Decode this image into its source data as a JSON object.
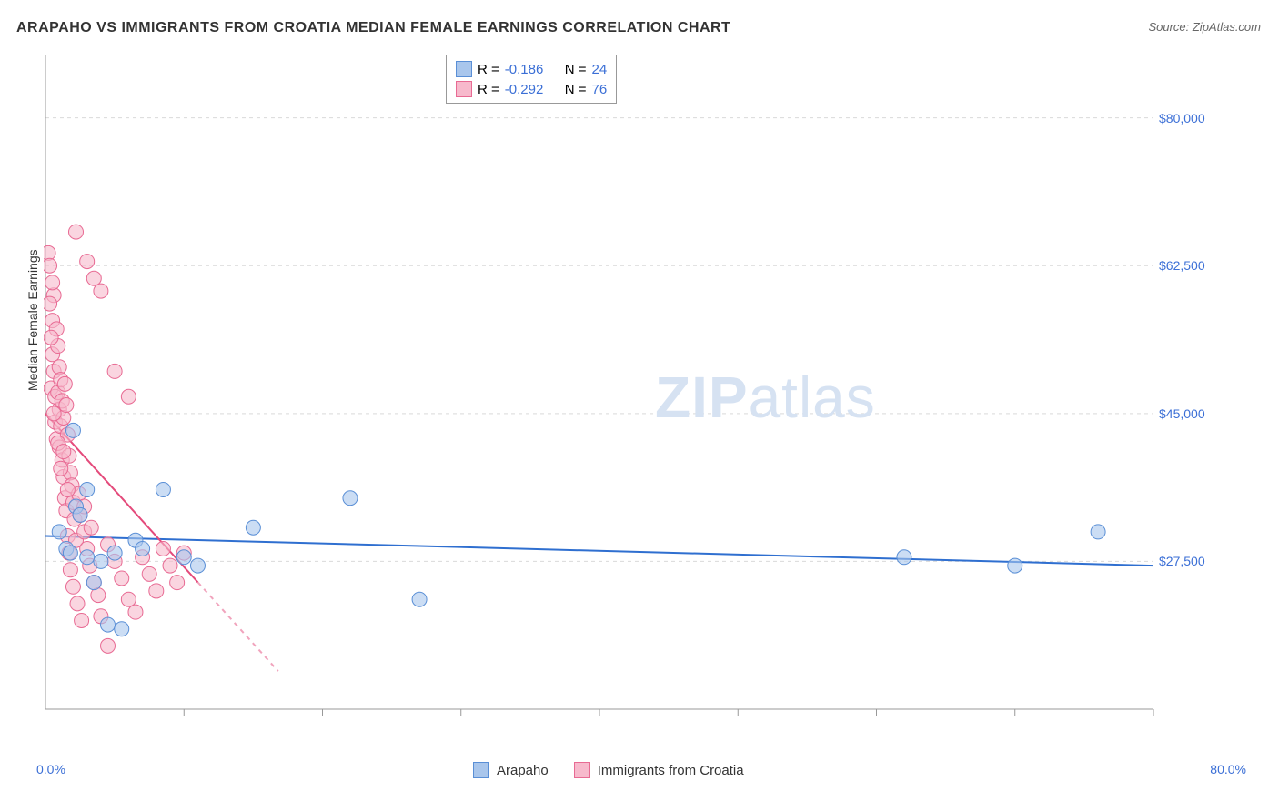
{
  "title": "ARAPAHO VS IMMIGRANTS FROM CROATIA MEDIAN FEMALE EARNINGS CORRELATION CHART",
  "source_prefix": "Source: ",
  "source": "ZipAtlas.com",
  "ylabel": "Median Female Earnings",
  "watermark_zip": "ZIP",
  "watermark_atlas": "atlas",
  "chart": {
    "type": "scatter",
    "xlim": [
      0,
      80
    ],
    "ylim": [
      10000,
      87500
    ],
    "x_ticks": [
      10,
      20,
      30,
      40,
      50,
      60,
      70,
      80
    ],
    "y_gridlines": [
      27500,
      45000,
      62500,
      80000
    ],
    "y_tick_labels": [
      "$27,500",
      "$45,000",
      "$62,500",
      "$80,000"
    ],
    "x_min_label": "0.0%",
    "x_max_label": "80.0%",
    "background_color": "#ffffff",
    "grid_color": "#d9d9d9",
    "axis_color": "#999999",
    "series": [
      {
        "key": "arapaho",
        "label": "Arapaho",
        "color_fill": "#a9c6ec",
        "color_stroke": "#5a8fd6",
        "marker_opacity": 0.6,
        "marker_radius": 8,
        "R": "-0.186",
        "N": "24",
        "regression": {
          "x1": 0,
          "y1": 30500,
          "x2": 80,
          "y2": 27000,
          "stroke": "#2f6fd0",
          "width": 2
        },
        "points": [
          [
            1.0,
            31000
          ],
          [
            1.5,
            29000
          ],
          [
            1.8,
            28500
          ],
          [
            2.0,
            43000
          ],
          [
            2.2,
            34000
          ],
          [
            2.5,
            33000
          ],
          [
            3.0,
            28000
          ],
          [
            3.0,
            36000
          ],
          [
            3.5,
            25000
          ],
          [
            4.0,
            27500
          ],
          [
            4.5,
            20000
          ],
          [
            5.0,
            28500
          ],
          [
            5.5,
            19500
          ],
          [
            6.5,
            30000
          ],
          [
            7.0,
            29000
          ],
          [
            8.5,
            36000
          ],
          [
            10.0,
            28000
          ],
          [
            11.0,
            27000
          ],
          [
            15.0,
            31500
          ],
          [
            22.0,
            35000
          ],
          [
            27.0,
            23000
          ],
          [
            62.0,
            28000
          ],
          [
            70.0,
            27000
          ],
          [
            76.0,
            31000
          ]
        ]
      },
      {
        "key": "croatia",
        "label": "Immigrants from Croatia",
        "color_fill": "#f7b9cc",
        "color_stroke": "#e86a93",
        "marker_opacity": 0.6,
        "marker_radius": 8,
        "R": "-0.292",
        "N": "76",
        "regression": {
          "x1": 0,
          "y1": 45000,
          "x2": 16.8,
          "y2": 14500,
          "stroke": "#e44a7b",
          "width": 2,
          "dash_from_x": 11.0
        },
        "points": [
          [
            0.2,
            64000
          ],
          [
            0.3,
            62500
          ],
          [
            0.4,
            48000
          ],
          [
            0.5,
            56000
          ],
          [
            0.5,
            52000
          ],
          [
            0.6,
            59000
          ],
          [
            0.6,
            50000
          ],
          [
            0.7,
            47000
          ],
          [
            0.7,
            44000
          ],
          [
            0.8,
            55000
          ],
          [
            0.8,
            42000
          ],
          [
            0.9,
            53000
          ],
          [
            0.9,
            47500
          ],
          [
            1.0,
            50500
          ],
          [
            1.0,
            45500
          ],
          [
            1.0,
            41000
          ],
          [
            1.1,
            49000
          ],
          [
            1.1,
            43500
          ],
          [
            1.2,
            46500
          ],
          [
            1.2,
            39500
          ],
          [
            1.3,
            44500
          ],
          [
            1.3,
            37500
          ],
          [
            1.4,
            48500
          ],
          [
            1.4,
            35000
          ],
          [
            1.5,
            46000
          ],
          [
            1.5,
            33500
          ],
          [
            1.6,
            42500
          ],
          [
            1.6,
            30500
          ],
          [
            1.7,
            40000
          ],
          [
            1.7,
            28500
          ],
          [
            1.8,
            38000
          ],
          [
            1.8,
            26500
          ],
          [
            1.9,
            36500
          ],
          [
            2.0,
            34500
          ],
          [
            2.0,
            24500
          ],
          [
            2.1,
            32500
          ],
          [
            2.2,
            30000
          ],
          [
            2.3,
            22500
          ],
          [
            2.4,
            35500
          ],
          [
            2.5,
            33000
          ],
          [
            2.6,
            20500
          ],
          [
            2.8,
            31000
          ],
          [
            3.0,
            63000
          ],
          [
            3.0,
            29000
          ],
          [
            3.2,
            27000
          ],
          [
            3.5,
            61000
          ],
          [
            3.5,
            25000
          ],
          [
            3.8,
            23500
          ],
          [
            4.0,
            59500
          ],
          [
            4.0,
            21000
          ],
          [
            4.5,
            29500
          ],
          [
            4.5,
            17500
          ],
          [
            5.0,
            50000
          ],
          [
            5.0,
            27500
          ],
          [
            5.5,
            25500
          ],
          [
            6.0,
            47000
          ],
          [
            6.0,
            23000
          ],
          [
            6.5,
            21500
          ],
          [
            7.0,
            28000
          ],
          [
            7.5,
            26000
          ],
          [
            8.0,
            24000
          ],
          [
            8.5,
            29000
          ],
          [
            9.0,
            27000
          ],
          [
            9.5,
            25000
          ],
          [
            10.0,
            28500
          ],
          [
            0.3,
            58000
          ],
          [
            0.4,
            54000
          ],
          [
            0.5,
            60500
          ],
          [
            0.6,
            45000
          ],
          [
            0.9,
            41500
          ],
          [
            1.1,
            38500
          ],
          [
            1.3,
            40500
          ],
          [
            1.6,
            36000
          ],
          [
            2.2,
            66500
          ],
          [
            2.8,
            34000
          ],
          [
            3.3,
            31500
          ]
        ]
      }
    ]
  },
  "legend_top": {
    "R_label": "R  =",
    "N_label": "N  ="
  },
  "legend_bottom": {
    "items": [
      "Arapaho",
      "Immigrants from Croatia"
    ]
  }
}
